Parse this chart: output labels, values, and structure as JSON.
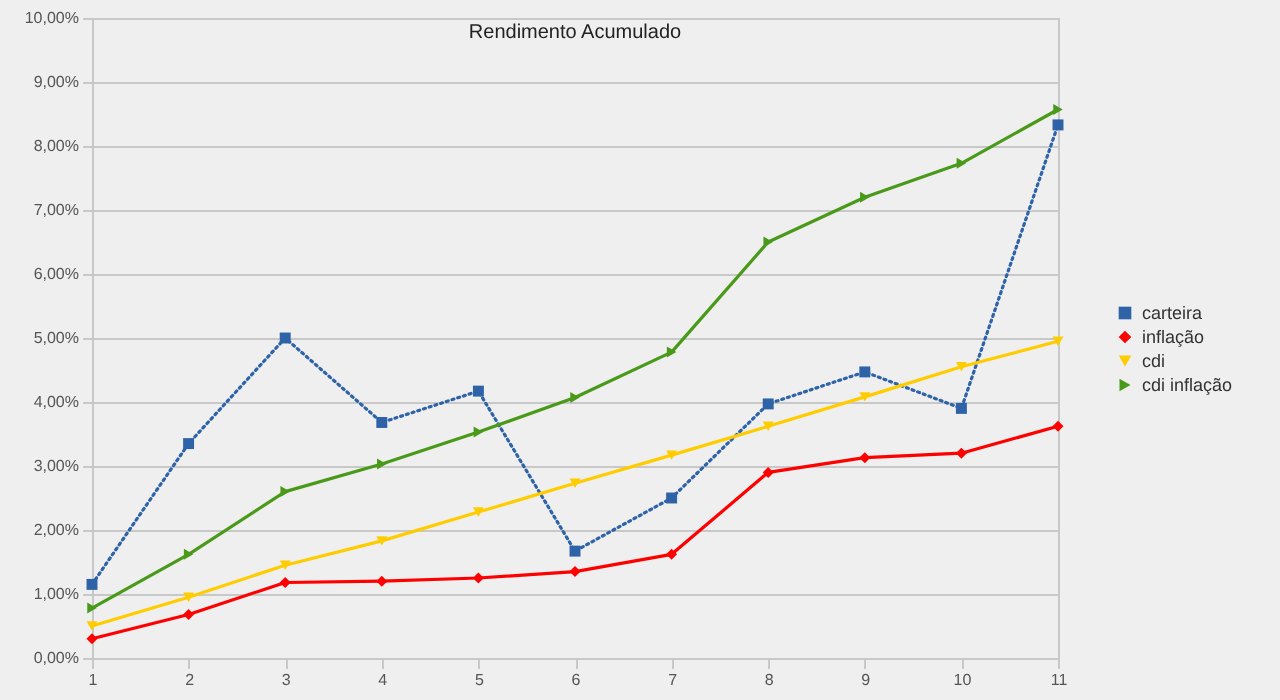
{
  "chart_data": {
    "type": "line",
    "title": "Rendimento Acumulado",
    "x": [
      1,
      2,
      3,
      4,
      5,
      6,
      7,
      8,
      9,
      10,
      11
    ],
    "xlim": [
      1,
      11
    ],
    "xticks": [
      1,
      2,
      3,
      4,
      5,
      6,
      7,
      8,
      9,
      10,
      11
    ],
    "ylim": [
      0,
      10
    ],
    "yticks": [
      {
        "value": 0,
        "label": "0,00%"
      },
      {
        "value": 1,
        "label": "1,00%"
      },
      {
        "value": 2,
        "label": "2,00%"
      },
      {
        "value": 3,
        "label": "3,00%"
      },
      {
        "value": 4,
        "label": "4,00%"
      },
      {
        "value": 5,
        "label": "5,00%"
      },
      {
        "value": 6,
        "label": "6,00%"
      },
      {
        "value": 7,
        "label": "7,00%"
      },
      {
        "value": 8,
        "label": "8,00%"
      },
      {
        "value": 9,
        "label": "9,00%"
      },
      {
        "value": 10,
        "label": "10,00%"
      }
    ],
    "grid": "y",
    "legend": "right",
    "series": [
      {
        "name": "carteira",
        "color": "#2e63a8",
        "marker": "square",
        "line_style": "dotted",
        "values": [
          1.15,
          3.35,
          5.0,
          3.68,
          4.17,
          1.67,
          2.5,
          3.97,
          4.47,
          3.9,
          8.33
        ]
      },
      {
        "name": "inflação",
        "color": "#ff0000",
        "marker": "diamond",
        "line_style": "solid",
        "values": [
          0.3,
          0.68,
          1.18,
          1.2,
          1.25,
          1.35,
          1.62,
          2.9,
          3.13,
          3.2,
          3.62
        ]
      },
      {
        "name": "cdi",
        "color": "#ffcc00",
        "marker": "triangle-down",
        "line_style": "solid",
        "values": [
          0.5,
          0.95,
          1.45,
          1.83,
          2.28,
          2.73,
          3.17,
          3.62,
          4.08,
          4.55,
          4.95
        ]
      },
      {
        "name": "cdi inflação",
        "color": "#4a9a1a",
        "marker": "triangle-right",
        "line_style": "solid",
        "values": [
          0.78,
          1.62,
          2.6,
          3.03,
          3.53,
          4.07,
          4.78,
          6.5,
          7.2,
          7.73,
          8.57
        ]
      }
    ]
  }
}
